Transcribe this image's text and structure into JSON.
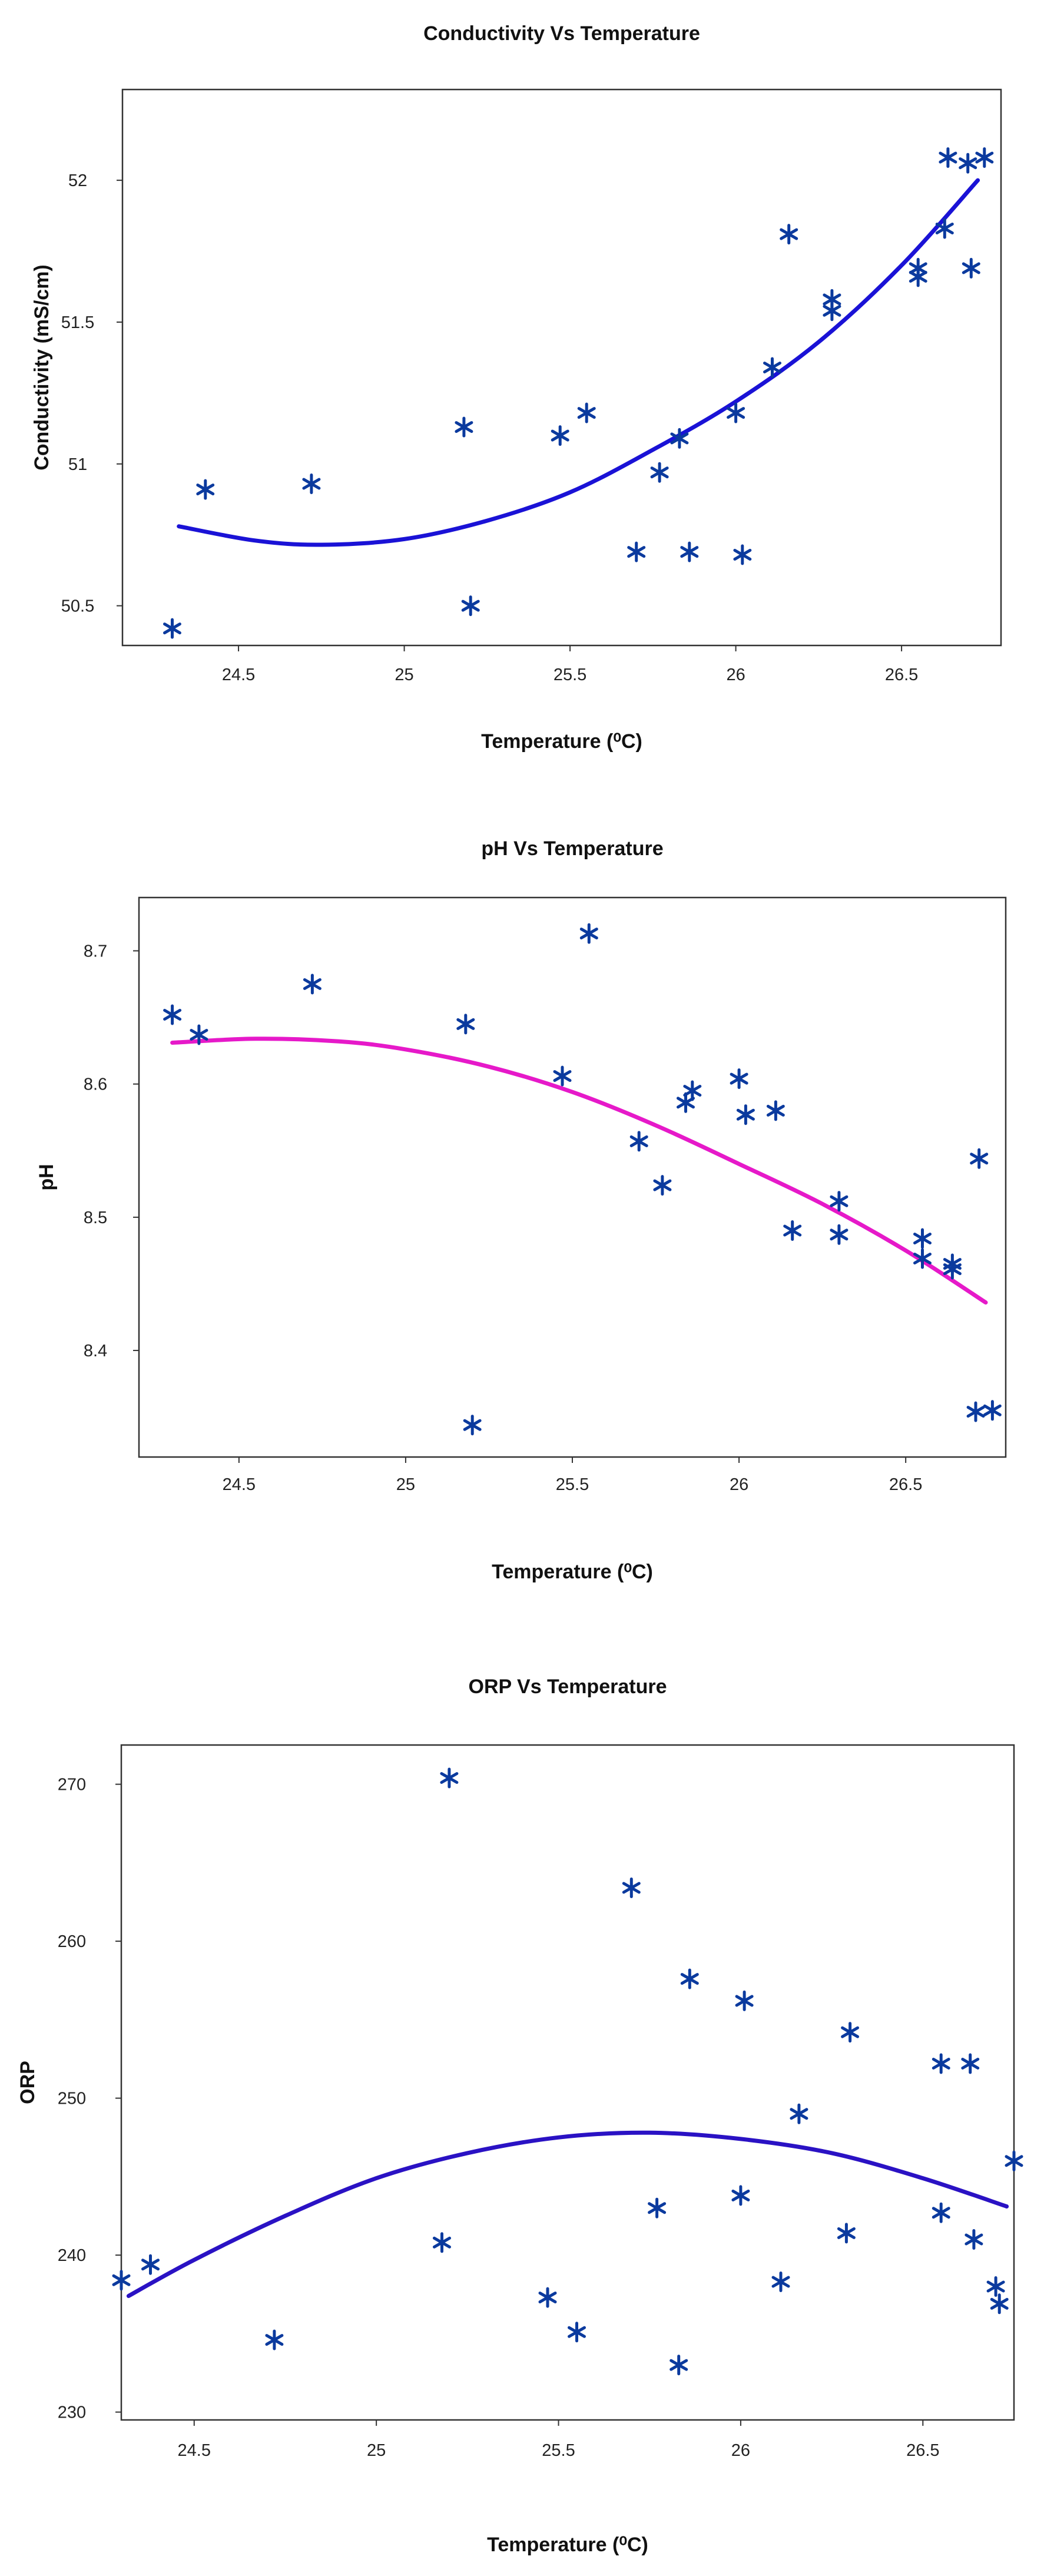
{
  "chart_data": [
    {
      "type": "scatter",
      "title": "Conductivity Vs Temperature",
      "xlabel": "Temperature (⁰C)",
      "ylabel": "Conductivity (mS/cm)",
      "xlim": [
        24.15,
        26.8
      ],
      "ylim": [
        50.36,
        52.32
      ],
      "xticks": [
        24.5,
        25,
        25.5,
        26,
        26.5
      ],
      "xtick_labels": [
        "24.5",
        "25",
        "25.5",
        "26",
        "26.5"
      ],
      "yticks": [
        50.5,
        51,
        51.5,
        52
      ],
      "ytick_labels": [
        "50.5",
        "51",
        "51.5",
        "52"
      ],
      "grid": false,
      "marker": "asterisk",
      "marker_color": "#0b3a9e",
      "fit_color": "#1a12d6",
      "points": [
        {
          "x": 24.3,
          "y": 50.42
        },
        {
          "x": 24.4,
          "y": 50.91
        },
        {
          "x": 24.72,
          "y": 50.93
        },
        {
          "x": 25.18,
          "y": 51.13
        },
        {
          "x": 25.2,
          "y": 50.5
        },
        {
          "x": 25.47,
          "y": 51.1
        },
        {
          "x": 25.55,
          "y": 51.18
        },
        {
          "x": 25.7,
          "y": 50.69
        },
        {
          "x": 25.77,
          "y": 50.97
        },
        {
          "x": 25.83,
          "y": 51.09
        },
        {
          "x": 25.86,
          "y": 50.69
        },
        {
          "x": 26.0,
          "y": 51.18
        },
        {
          "x": 26.02,
          "y": 50.68
        },
        {
          "x": 26.11,
          "y": 51.34
        },
        {
          "x": 26.16,
          "y": 51.81
        },
        {
          "x": 26.29,
          "y": 51.54
        },
        {
          "x": 26.29,
          "y": 51.58
        },
        {
          "x": 26.55,
          "y": 51.66
        },
        {
          "x": 26.55,
          "y": 51.69
        },
        {
          "x": 26.63,
          "y": 51.83
        },
        {
          "x": 26.64,
          "y": 52.08
        },
        {
          "x": 26.7,
          "y": 52.06
        },
        {
          "x": 26.71,
          "y": 51.69
        },
        {
          "x": 26.75,
          "y": 52.08
        }
      ],
      "fit": {
        "x": [
          24.32,
          24.55,
          24.75,
          25.0,
          25.25,
          25.5,
          25.75,
          26.0,
          26.25,
          26.5,
          26.73
        ],
        "y": [
          50.78,
          50.73,
          50.715,
          50.735,
          50.8,
          50.9,
          51.05,
          51.22,
          51.43,
          51.7,
          52.0
        ]
      }
    },
    {
      "type": "scatter",
      "title": "pH Vs Temperature",
      "xlabel": "Temperature (⁰C)",
      "ylabel": "pH",
      "xlim": [
        24.2,
        26.8
      ],
      "ylim": [
        8.32,
        8.74
      ],
      "xticks": [
        24.5,
        25,
        25.5,
        26,
        26.5
      ],
      "xtick_labels": [
        "24.5",
        "25",
        "25.5",
        "26",
        "26.5"
      ],
      "yticks": [
        8.4,
        8.5,
        8.6,
        8.7
      ],
      "ytick_labels": [
        "8.4",
        "8.5",
        "8.6",
        "8.7"
      ],
      "grid": false,
      "marker": "asterisk",
      "marker_color": "#0b3a9e",
      "fit_color": "#e619c9",
      "points": [
        {
          "x": 24.3,
          "y": 8.652
        },
        {
          "x": 24.38,
          "y": 8.637
        },
        {
          "x": 24.72,
          "y": 8.675
        },
        {
          "x": 25.18,
          "y": 8.645
        },
        {
          "x": 25.2,
          "y": 8.344
        },
        {
          "x": 25.47,
          "y": 8.606
        },
        {
          "x": 25.55,
          "y": 8.713
        },
        {
          "x": 25.7,
          "y": 8.557
        },
        {
          "x": 25.77,
          "y": 8.524
        },
        {
          "x": 25.84,
          "y": 8.586
        },
        {
          "x": 25.86,
          "y": 8.595
        },
        {
          "x": 26.0,
          "y": 8.604
        },
        {
          "x": 26.02,
          "y": 8.577
        },
        {
          "x": 26.11,
          "y": 8.58
        },
        {
          "x": 26.16,
          "y": 8.49
        },
        {
          "x": 26.3,
          "y": 8.512
        },
        {
          "x": 26.3,
          "y": 8.487
        },
        {
          "x": 26.55,
          "y": 8.484
        },
        {
          "x": 26.55,
          "y": 8.469
        },
        {
          "x": 26.64,
          "y": 8.465
        },
        {
          "x": 26.64,
          "y": 8.461
        },
        {
          "x": 26.71,
          "y": 8.354
        },
        {
          "x": 26.72,
          "y": 8.544
        },
        {
          "x": 26.76,
          "y": 8.355
        }
      ],
      "fit": {
        "x": [
          24.3,
          24.55,
          24.8,
          25.0,
          25.25,
          25.5,
          25.75,
          26.0,
          26.25,
          26.5,
          26.74
        ],
        "y": [
          8.631,
          8.634,
          8.632,
          8.626,
          8.613,
          8.594,
          8.569,
          8.54,
          8.51,
          8.475,
          8.436
        ]
      }
    },
    {
      "type": "scatter",
      "title": "ORP Vs Temperature",
      "xlabel": "Temperature (⁰C)",
      "ylabel": "ORP",
      "xlim": [
        24.3,
        26.75
      ],
      "ylim": [
        229.5,
        272.5
      ],
      "xticks": [
        24.5,
        25,
        25.5,
        26,
        26.5
      ],
      "xtick_labels": [
        "24.5",
        "25",
        "25.5",
        "26",
        "26.5"
      ],
      "yticks": [
        230,
        240,
        250,
        260,
        270
      ],
      "ytick_labels": [
        "230",
        "240",
        "250",
        "260",
        "270"
      ],
      "grid": false,
      "marker": "asterisk",
      "marker_color": "#0b3a9e",
      "fit_color": "#2a12c4",
      "points": [
        {
          "x": 24.3,
          "y": 238.4
        },
        {
          "x": 24.38,
          "y": 239.4
        },
        {
          "x": 24.72,
          "y": 234.6
        },
        {
          "x": 25.18,
          "y": 240.8
        },
        {
          "x": 25.2,
          "y": 270.4
        },
        {
          "x": 25.47,
          "y": 237.3
        },
        {
          "x": 25.55,
          "y": 235.1
        },
        {
          "x": 25.7,
          "y": 263.4
        },
        {
          "x": 25.77,
          "y": 243.0
        },
        {
          "x": 25.83,
          "y": 233.0
        },
        {
          "x": 25.86,
          "y": 257.6
        },
        {
          "x": 26.0,
          "y": 243.8
        },
        {
          "x": 26.01,
          "y": 256.2
        },
        {
          "x": 26.11,
          "y": 238.3
        },
        {
          "x": 26.16,
          "y": 249.0
        },
        {
          "x": 26.29,
          "y": 241.4
        },
        {
          "x": 26.3,
          "y": 254.2
        },
        {
          "x": 26.55,
          "y": 242.7
        },
        {
          "x": 26.55,
          "y": 252.2
        },
        {
          "x": 26.63,
          "y": 252.2
        },
        {
          "x": 26.64,
          "y": 241.0
        },
        {
          "x": 26.7,
          "y": 238.0
        },
        {
          "x": 26.71,
          "y": 236.9
        },
        {
          "x": 26.75,
          "y": 246.0
        }
      ],
      "fit": {
        "x": [
          24.32,
          24.5,
          24.75,
          25.0,
          25.25,
          25.5,
          25.75,
          26.0,
          26.25,
          26.5,
          26.73
        ],
        "y": [
          237.4,
          239.7,
          242.5,
          244.9,
          246.5,
          247.5,
          247.8,
          247.4,
          246.5,
          244.9,
          243.1
        ]
      }
    }
  ]
}
